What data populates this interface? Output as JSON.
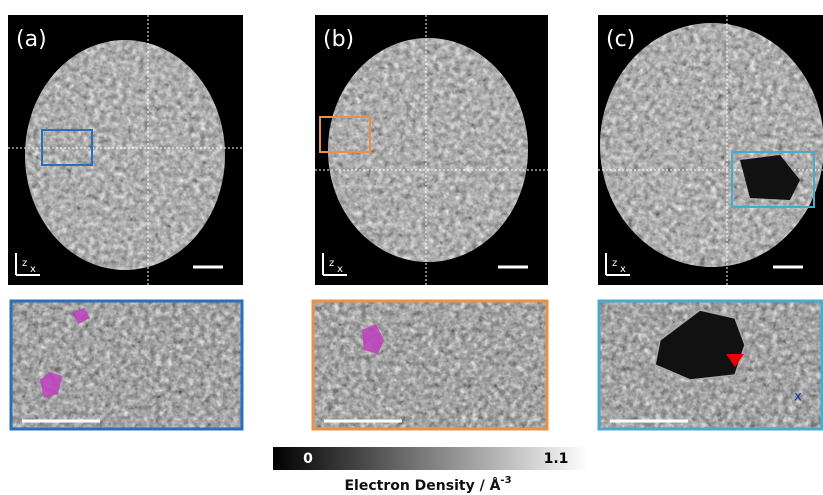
{
  "panels": [
    {
      "label": "(a)"
    },
    {
      "label": "(b)"
    },
    {
      "label": "(c)"
    }
  ],
  "axes_labels": {
    "z": "z",
    "x": "x"
  },
  "inset_marker": "x",
  "colorbar": {
    "min": 0,
    "max": 1.1,
    "title": "Electron Density / Å",
    "title_superscript": "-3"
  }
}
